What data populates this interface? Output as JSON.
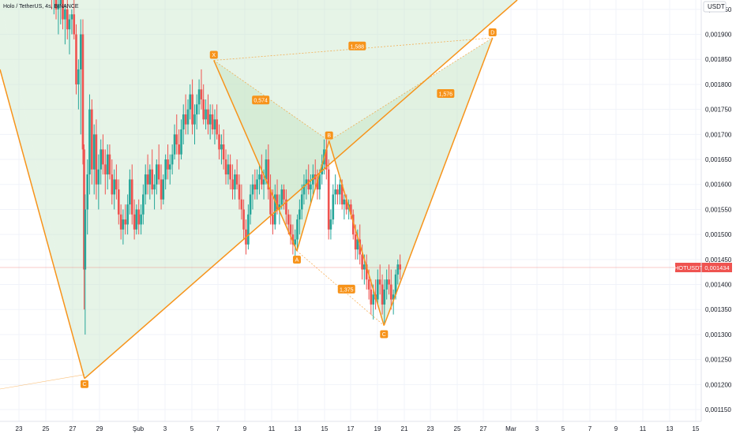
{
  "chart_data": {
    "type": "candlestick",
    "title": "Holo / TetherUS, 4s, BINANCE",
    "currency": "USDT",
    "ylim": [
      0.00115,
      0.00197
    ],
    "y_ticks": [
      "0,001150",
      "0,001200",
      "0,001250",
      "0,001300",
      "0,001350",
      "0,001400",
      "0,001450",
      "0,001500",
      "0,001550",
      "0,001600",
      "0,001650",
      "0,001700",
      "0,001750",
      "0,001800",
      "0,001850",
      "0,001900",
      "0,001950"
    ],
    "x_ticks": [
      "23",
      "25",
      "27",
      "29",
      "Şub",
      "3",
      "5",
      "7",
      "9",
      "11",
      "13",
      "15",
      "17",
      "19",
      "21",
      "23",
      "25",
      "27",
      "Mar",
      "3",
      "5",
      "7",
      "9",
      "11",
      "13",
      "15"
    ],
    "last_price": {
      "symbol": "HOTUSDT",
      "value": 0.001434,
      "label": "0,001434"
    },
    "colors": {
      "up": "#26a69a",
      "down": "#ef5350",
      "pattern": "#f7931a",
      "fill": "#c8e6c9"
    },
    "pattern": {
      "points": [
        {
          "label": "X",
          "day": 12.6,
          "price": 0.001848
        },
        {
          "label": "A",
          "day": 18.8,
          "price": 0.001467
        },
        {
          "label": "B",
          "day": 21.2,
          "price": 0.001687
        },
        {
          "label": "C",
          "day": 25.3,
          "price": 0.001318
        },
        {
          "label": "D",
          "day": 33.4,
          "price": 0.001893
        }
      ],
      "ratios": [
        {
          "label": "0,574",
          "day": 16.1,
          "price": 0.001768
        },
        {
          "label": "1,576",
          "day": 29.9,
          "price": 0.001781
        },
        {
          "label": "1,375",
          "day": 22.5,
          "price": 0.00139
        },
        {
          "label": "1,588",
          "day": 23.3,
          "price": 0.001876
        }
      ]
    },
    "big_pattern": {
      "points": [
        {
          "label": "C",
          "day": 2.95,
          "price": 0.001212
        }
      ]
    },
    "candles": [
      [
        0.5,
        0.002,
        0.00202,
        0.00195,
        0.00197
      ],
      [
        0.67,
        0.00197,
        0.00199,
        0.00194,
        0.00198
      ],
      [
        0.83,
        0.00198,
        0.002,
        0.00193,
        0.00195
      ],
      [
        1.0,
        0.00195,
        0.00197,
        0.0019,
        0.00196
      ],
      [
        1.17,
        0.00196,
        0.00198,
        0.00192,
        0.00197
      ],
      [
        1.33,
        0.00197,
        0.00199,
        0.00191,
        0.00193
      ],
      [
        1.5,
        0.00193,
        0.00196,
        0.00188,
        0.00195
      ],
      [
        1.67,
        0.00195,
        0.00197,
        0.00189,
        0.00191
      ],
      [
        1.83,
        0.00191,
        0.00194,
        0.00186,
        0.00193
      ],
      [
        2.0,
        0.00193,
        0.00195,
        0.0019,
        0.00194
      ],
      [
        2.17,
        0.00194,
        0.00197,
        0.00189,
        0.0019
      ],
      [
        2.33,
        0.0019,
        0.00192,
        0.00178,
        0.0018
      ],
      [
        2.5,
        0.0018,
        0.00185,
        0.00175,
        0.00183
      ],
      [
        2.67,
        0.00183,
        0.00193,
        0.0017,
        0.0019
      ],
      [
        2.83,
        0.0019,
        0.00193,
        0.00164,
        0.00167
      ],
      [
        2.92,
        0.00167,
        0.00168,
        0.00135,
        0.00143
      ],
      [
        3.0,
        0.00143,
        0.00158,
        0.0013,
        0.00155
      ],
      [
        3.17,
        0.00155,
        0.00165,
        0.0015,
        0.00162
      ],
      [
        3.33,
        0.00162,
        0.00178,
        0.00158,
        0.00175
      ],
      [
        3.5,
        0.00175,
        0.00177,
        0.0016,
        0.00163
      ],
      [
        3.67,
        0.00163,
        0.00172,
        0.00158,
        0.0017
      ],
      [
        3.83,
        0.0017,
        0.00173,
        0.00157,
        0.0016
      ],
      [
        4.0,
        0.0016,
        0.00166,
        0.00155,
        0.00163
      ],
      [
        4.17,
        0.00163,
        0.00169,
        0.0016,
        0.00167
      ],
      [
        4.33,
        0.00167,
        0.0017,
        0.00162,
        0.00164
      ],
      [
        4.5,
        0.00164,
        0.00167,
        0.00158,
        0.00162
      ],
      [
        4.67,
        0.00162,
        0.00168,
        0.00159,
        0.00166
      ],
      [
        4.83,
        0.00166,
        0.00168,
        0.00161,
        0.00162
      ],
      [
        5.0,
        0.00162,
        0.00165,
        0.00156,
        0.00158
      ],
      [
        5.17,
        0.00158,
        0.00163,
        0.00155,
        0.00161
      ],
      [
        5.33,
        0.00161,
        0.00164,
        0.00157,
        0.00159
      ],
      [
        5.5,
        0.00159,
        0.00161,
        0.00152,
        0.00154
      ],
      [
        5.67,
        0.00154,
        0.00156,
        0.00149,
        0.00151
      ],
      [
        5.83,
        0.00151,
        0.00155,
        0.00148,
        0.00153
      ],
      [
        6.0,
        0.00153,
        0.00156,
        0.0015,
        0.00152
      ],
      [
        6.17,
        0.00152,
        0.00158,
        0.0015,
        0.00156
      ],
      [
        6.33,
        0.00156,
        0.00163,
        0.00154,
        0.00161
      ],
      [
        6.5,
        0.00161,
        0.00164,
        0.00152,
        0.00154
      ],
      [
        6.67,
        0.00154,
        0.00157,
        0.00149,
        0.00151
      ],
      [
        6.83,
        0.00151,
        0.00156,
        0.0015,
        0.00155
      ],
      [
        7.0,
        0.00155,
        0.00157,
        0.0015,
        0.00152
      ],
      [
        7.17,
        0.00152,
        0.00156,
        0.0015,
        0.00154
      ],
      [
        7.33,
        0.00154,
        0.0016,
        0.00152,
        0.00158
      ],
      [
        7.5,
        0.00158,
        0.00164,
        0.00156,
        0.00162
      ],
      [
        7.67,
        0.00162,
        0.00166,
        0.00158,
        0.0016
      ],
      [
        7.83,
        0.0016,
        0.00164,
        0.00157,
        0.00163
      ],
      [
        8.0,
        0.00163,
        0.00167,
        0.00158,
        0.00159
      ],
      [
        8.17,
        0.00159,
        0.00162,
        0.00155,
        0.0016
      ],
      [
        8.33,
        0.0016,
        0.00165,
        0.00158,
        0.00164
      ],
      [
        8.5,
        0.00164,
        0.00168,
        0.0016,
        0.00161
      ],
      [
        8.67,
        0.00161,
        0.00164,
        0.00155,
        0.00157
      ],
      [
        8.83,
        0.00157,
        0.00162,
        0.00156,
        0.00161
      ],
      [
        9.0,
        0.00161,
        0.00166,
        0.00159,
        0.00165
      ],
      [
        9.17,
        0.00165,
        0.00168,
        0.00161,
        0.00163
      ],
      [
        9.33,
        0.00163,
        0.00166,
        0.0016,
        0.00164
      ],
      [
        9.5,
        0.00164,
        0.00168,
        0.00162,
        0.00166
      ],
      [
        9.67,
        0.00166,
        0.00172,
        0.00165,
        0.0017
      ],
      [
        9.83,
        0.0017,
        0.00174,
        0.00166,
        0.00168
      ],
      [
        10.0,
        0.00168,
        0.00171,
        0.00163,
        0.00166
      ],
      [
        10.17,
        0.00166,
        0.00173,
        0.00165,
        0.00171
      ],
      [
        10.33,
        0.00171,
        0.00176,
        0.00168,
        0.00174
      ],
      [
        10.5,
        0.00174,
        0.00178,
        0.0017,
        0.00172
      ],
      [
        10.67,
        0.00172,
        0.00177,
        0.0017,
        0.00175
      ],
      [
        10.83,
        0.00175,
        0.0018,
        0.00173,
        0.00178
      ],
      [
        11.0,
        0.00178,
        0.00181,
        0.0017,
        0.00172
      ],
      [
        11.17,
        0.00172,
        0.00176,
        0.00168,
        0.00174
      ],
      [
        11.33,
        0.00174,
        0.00178,
        0.00171,
        0.00176
      ],
      [
        11.5,
        0.00176,
        0.00181,
        0.00174,
        0.00179
      ],
      [
        11.67,
        0.00179,
        0.00183,
        0.00175,
        0.00177
      ],
      [
        11.83,
        0.00177,
        0.0018,
        0.00172,
        0.00173
      ],
      [
        12.0,
        0.00173,
        0.00177,
        0.00171,
        0.00175
      ],
      [
        12.17,
        0.00175,
        0.00178,
        0.0017,
        0.00172
      ],
      [
        12.33,
        0.00172,
        0.00176,
        0.00169,
        0.00174
      ],
      [
        12.5,
        0.00174,
        0.00176,
        0.0017,
        0.00171
      ],
      [
        12.67,
        0.00171,
        0.00175,
        0.00168,
        0.00173
      ],
      [
        12.83,
        0.00173,
        0.00176,
        0.00169,
        0.0017
      ],
      [
        13.0,
        0.0017,
        0.00172,
        0.00165,
        0.00167
      ],
      [
        13.17,
        0.00167,
        0.0017,
        0.00164,
        0.00168
      ],
      [
        13.33,
        0.00168,
        0.00171,
        0.00163,
        0.00165
      ],
      [
        13.5,
        0.00165,
        0.00167,
        0.0016,
        0.00162
      ],
      [
        13.67,
        0.00162,
        0.00166,
        0.0016,
        0.00164
      ],
      [
        13.83,
        0.00164,
        0.00166,
        0.00159,
        0.00161
      ],
      [
        14.0,
        0.00161,
        0.00164,
        0.00157,
        0.00159
      ],
      [
        14.17,
        0.00159,
        0.00163,
        0.00157,
        0.00162
      ],
      [
        14.33,
        0.00162,
        0.00165,
        0.00159,
        0.0016
      ],
      [
        14.5,
        0.0016,
        0.00162,
        0.00155,
        0.00157
      ],
      [
        14.67,
        0.00157,
        0.0016,
        0.00153,
        0.00155
      ],
      [
        14.83,
        0.00155,
        0.00157,
        0.00149,
        0.00151
      ],
      [
        15.0,
        0.00151,
        0.00153,
        0.00146,
        0.00148
      ],
      [
        15.17,
        0.00148,
        0.00156,
        0.00147,
        0.00154
      ],
      [
        15.33,
        0.00154,
        0.0016,
        0.00152,
        0.00158
      ],
      [
        15.5,
        0.00158,
        0.00162,
        0.00155,
        0.0016
      ],
      [
        15.67,
        0.0016,
        0.00163,
        0.00157,
        0.00159
      ],
      [
        15.83,
        0.00159,
        0.00163,
        0.00157,
        0.00161
      ],
      [
        16.0,
        0.00161,
        0.00164,
        0.00158,
        0.00162
      ],
      [
        16.17,
        0.00162,
        0.00166,
        0.00159,
        0.0016
      ],
      [
        16.33,
        0.0016,
        0.00163,
        0.00157,
        0.00161
      ],
      [
        16.5,
        0.00161,
        0.00167,
        0.0016,
        0.00165
      ],
      [
        16.67,
        0.00165,
        0.00168,
        0.00157,
        0.00159
      ],
      [
        16.83,
        0.00159,
        0.00162,
        0.00152,
        0.00154
      ],
      [
        17.0,
        0.00154,
        0.00159,
        0.0015,
        0.00152
      ],
      [
        17.17,
        0.00152,
        0.0016,
        0.00151,
        0.00158
      ],
      [
        17.33,
        0.00158,
        0.00161,
        0.00154,
        0.00155
      ],
      [
        17.5,
        0.00155,
        0.00158,
        0.00152,
        0.00156
      ],
      [
        17.67,
        0.00156,
        0.0016,
        0.00155,
        0.00159
      ],
      [
        17.83,
        0.00159,
        0.0016,
        0.00155,
        0.00157
      ],
      [
        18.0,
        0.00157,
        0.00159,
        0.00152,
        0.00154
      ],
      [
        18.17,
        0.00154,
        0.00155,
        0.0015,
        0.00152
      ],
      [
        18.33,
        0.00152,
        0.00154,
        0.00148,
        0.0015
      ],
      [
        18.5,
        0.0015,
        0.00152,
        0.00146,
        0.00148
      ],
      [
        18.67,
        0.00148,
        0.00151,
        0.00145,
        0.00149
      ],
      [
        18.83,
        0.00149,
        0.00154,
        0.00147,
        0.00153
      ],
      [
        19.0,
        0.00153,
        0.00157,
        0.0015,
        0.00155
      ],
      [
        19.17,
        0.00155,
        0.0016,
        0.00153,
        0.00158
      ],
      [
        19.33,
        0.00158,
        0.00162,
        0.00156,
        0.0016
      ],
      [
        19.5,
        0.0016,
        0.00163,
        0.00157,
        0.00161
      ],
      [
        19.67,
        0.00161,
        0.00164,
        0.00158,
        0.00159
      ],
      [
        19.83,
        0.00159,
        0.00162,
        0.00156,
        0.0016
      ],
      [
        20.0,
        0.0016,
        0.00164,
        0.00158,
        0.00162
      ],
      [
        20.17,
        0.00162,
        0.00165,
        0.00159,
        0.00161
      ],
      [
        20.33,
        0.00161,
        0.00163,
        0.00157,
        0.00159
      ],
      [
        20.5,
        0.00159,
        0.00163,
        0.00157,
        0.00162
      ],
      [
        20.67,
        0.00162,
        0.00166,
        0.0016,
        0.00164
      ],
      [
        20.83,
        0.00164,
        0.00169,
        0.00162,
        0.00167
      ],
      [
        21.0,
        0.00167,
        0.00169,
        0.00161,
        0.00163
      ],
      [
        21.17,
        0.00163,
        0.00165,
        0.00149,
        0.00151
      ],
      [
        21.33,
        0.00151,
        0.00155,
        0.00149,
        0.00153
      ],
      [
        21.5,
        0.00153,
        0.0016,
        0.00152,
        0.00158
      ],
      [
        21.67,
        0.00158,
        0.00162,
        0.00156,
        0.00159
      ],
      [
        21.83,
        0.00159,
        0.0016,
        0.00156,
        0.00158
      ],
      [
        22.0,
        0.00158,
        0.00161,
        0.00156,
        0.0016
      ],
      [
        22.17,
        0.0016,
        0.00161,
        0.00155,
        0.00156
      ],
      [
        22.33,
        0.00156,
        0.00158,
        0.00153,
        0.00157
      ],
      [
        22.5,
        0.00157,
        0.00158,
        0.00154,
        0.00155
      ],
      [
        22.67,
        0.00155,
        0.00157,
        0.00153,
        0.00156
      ],
      [
        22.83,
        0.00156,
        0.00157,
        0.00153,
        0.00154
      ],
      [
        23.0,
        0.00154,
        0.00155,
        0.00149,
        0.0015
      ],
      [
        23.17,
        0.0015,
        0.00152,
        0.00145,
        0.00147
      ],
      [
        23.33,
        0.00147,
        0.00151,
        0.00145,
        0.00149
      ],
      [
        23.5,
        0.00149,
        0.00152,
        0.00144,
        0.00146
      ],
      [
        23.67,
        0.00146,
        0.00148,
        0.00141,
        0.00143
      ],
      [
        23.83,
        0.00143,
        0.00146,
        0.0014,
        0.00144
      ],
      [
        24.0,
        0.00144,
        0.00146,
        0.00139,
        0.00141
      ],
      [
        24.17,
        0.00141,
        0.00143,
        0.00137,
        0.00139
      ],
      [
        24.33,
        0.00139,
        0.00141,
        0.00134,
        0.00136
      ],
      [
        24.5,
        0.00136,
        0.0014,
        0.00133,
        0.00138
      ],
      [
        24.67,
        0.00138,
        0.00141,
        0.00135,
        0.00137
      ],
      [
        24.83,
        0.00137,
        0.00143,
        0.00136,
        0.00141
      ],
      [
        25.0,
        0.00141,
        0.00144,
        0.00138,
        0.0014
      ],
      [
        25.17,
        0.0014,
        0.00142,
        0.00134,
        0.00136
      ],
      [
        25.33,
        0.00136,
        0.00141,
        0.00132,
        0.00139
      ],
      [
        25.5,
        0.00139,
        0.00143,
        0.00137,
        0.00141
      ],
      [
        25.67,
        0.00141,
        0.00144,
        0.00138,
        0.0014
      ],
      [
        25.83,
        0.0014,
        0.00143,
        0.00135,
        0.00137
      ],
      [
        26.0,
        0.00137,
        0.00139,
        0.00134,
        0.00138
      ],
      [
        26.17,
        0.00138,
        0.00143,
        0.00137,
        0.00142
      ],
      [
        26.33,
        0.00142,
        0.00145,
        0.0014,
        0.00144
      ],
      [
        26.5,
        0.00144,
        0.00146,
        0.00141,
        0.00143
      ]
    ]
  }
}
